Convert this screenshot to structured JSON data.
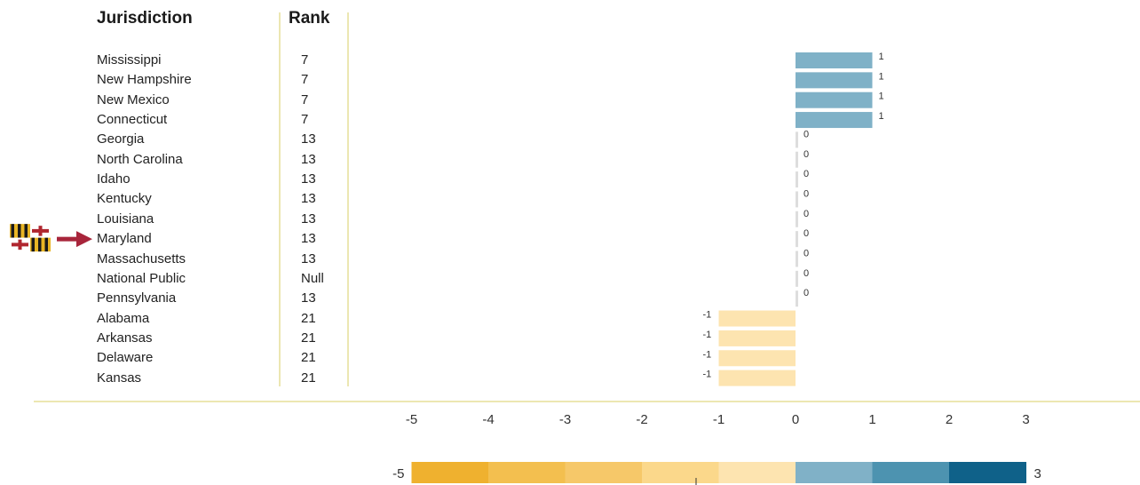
{
  "headers": {
    "jurisdiction": "Jurisdiction",
    "rank": "Rank"
  },
  "highlight": {
    "row": "Maryland",
    "icon": "maryland-flag-icon",
    "arrow_color": "#a8253b"
  },
  "colors": {
    "positive_bar": "#7fb1c7",
    "negative_bar": "#fde4b0",
    "zero_bar": "#dddddd",
    "divider": "#ece7b2",
    "scale": [
      "#efb12f",
      "#f3bf4f",
      "#f6c869",
      "#fbd88b",
      "#fde4b0",
      "#80b1c7",
      "#4d93b0",
      "#0f6189"
    ]
  },
  "chart_data": {
    "type": "bar",
    "orientation": "horizontal",
    "categories": [
      "Mississippi",
      "New Hampshire",
      "New Mexico",
      "Connecticut",
      "Georgia",
      "North Carolina",
      "Idaho",
      "Kentucky",
      "Louisiana",
      "Maryland",
      "Massachusetts",
      "National Public",
      "Pennsylvania",
      "Alabama",
      "Arkansas",
      "Delaware",
      "Kansas"
    ],
    "ranks": [
      "7",
      "7",
      "7",
      "7",
      "13",
      "13",
      "13",
      "13",
      "13",
      "13",
      "13",
      "Null",
      "13",
      "21",
      "21",
      "21",
      "21"
    ],
    "values": [
      1,
      1,
      1,
      1,
      0,
      0,
      0,
      0,
      0,
      0,
      0,
      0,
      0,
      -1,
      -1,
      -1,
      -1
    ],
    "value_labels": [
      "1",
      "1",
      "1",
      "1",
      "0",
      "0",
      "0",
      "0",
      "0",
      "0",
      "0",
      "0",
      "0",
      "-1",
      "-1",
      "-1",
      "-1"
    ],
    "xlim": [
      -5,
      3
    ],
    "xticks": [
      "-5",
      "-4",
      "-3",
      "-2",
      "-1",
      "0",
      "1",
      "2",
      "3"
    ],
    "legend": {
      "min_label": "-5",
      "max_label": "3"
    }
  }
}
